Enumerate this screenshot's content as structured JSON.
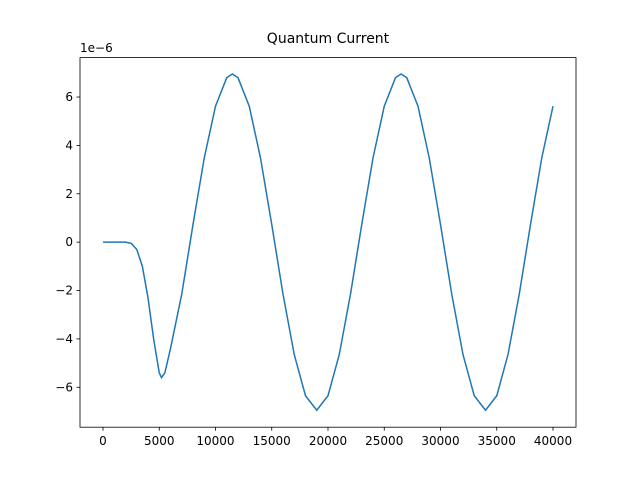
{
  "chart_data": {
    "type": "line",
    "title": "Quantum Current",
    "y_offset_label": "1e−6",
    "x": [
      0,
      1000,
      2000,
      2500,
      3000,
      3500,
      4000,
      4500,
      5000,
      5200,
      5500,
      6000,
      7000,
      8000,
      9000,
      10000,
      11000,
      11500,
      12000,
      13000,
      14000,
      15000,
      16000,
      17000,
      18000,
      19000,
      20000,
      21000,
      22000,
      23000,
      24000,
      25000,
      26000,
      26500,
      27000,
      28000,
      29000,
      30000,
      31000,
      32000,
      33000,
      34000,
      35000,
      36000,
      37000,
      38000,
      39000,
      40000
    ],
    "series": [
      {
        "color": "#1f77b4",
        "values": [
          0,
          0,
          0,
          -0.05,
          -0.3,
          -1.0,
          -2.3,
          -4.0,
          -5.4,
          -5.6,
          -5.4,
          -4.4,
          -2.15,
          0.73,
          3.48,
          5.62,
          6.8,
          6.95,
          6.8,
          5.62,
          3.48,
          0.73,
          -2.15,
          -4.65,
          -6.35,
          -6.95,
          -6.35,
          -4.65,
          -2.15,
          0.73,
          3.48,
          5.62,
          6.8,
          6.95,
          6.8,
          5.62,
          3.48,
          0.73,
          -2.15,
          -4.65,
          -6.35,
          -6.95,
          -6.35,
          -4.65,
          -2.15,
          0.73,
          3.48,
          5.62
        ]
      }
    ],
    "xlim": [
      -2044,
      42044
    ],
    "ylim": [
      -7.65,
      7.63
    ],
    "xticks": [
      0,
      5000,
      10000,
      15000,
      20000,
      25000,
      30000,
      35000,
      40000
    ],
    "yticks": [
      {
        "value": -6,
        "label": "−6"
      },
      {
        "value": -4,
        "label": "−4"
      },
      {
        "value": -2,
        "label": "−2"
      },
      0,
      2,
      4,
      6
    ]
  }
}
